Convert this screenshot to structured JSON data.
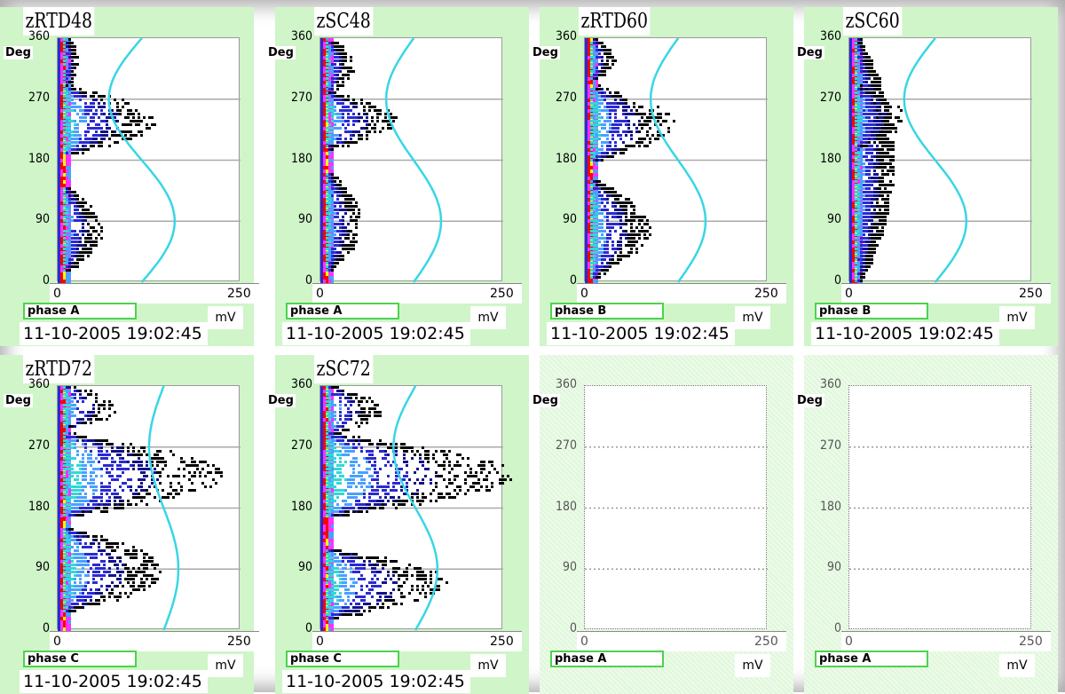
{
  "colors": {
    "panel_bg": "#cff5c9",
    "grid": "#aaaaaa",
    "sine": "#38d6e6",
    "phase_border": "#4ed24e",
    "density_scale": [
      "#000000",
      "#12128a",
      "#2a2ad2",
      "#4aa0ff",
      "#30d8d8",
      "#ff30ff",
      "#ff0000",
      "#ffff00"
    ]
  },
  "panels": [
    {
      "id": "zRTD48",
      "title": "zRTD48",
      "phase": "phase A",
      "unit": "mV",
      "timestamp": "11-10-2005  19:02:45",
      "active": true,
      "y_unit": "Deg",
      "yticks": [
        "0",
        "90",
        "180",
        "270",
        "360"
      ],
      "xticks": [
        "0",
        "250"
      ]
    },
    {
      "id": "zSC48",
      "title": "zSC48",
      "phase": "phase A",
      "unit": "mV",
      "timestamp": "11-10-2005  19:02:45",
      "active": true,
      "y_unit": "Deg",
      "yticks": [
        "0",
        "90",
        "180",
        "270",
        "360"
      ],
      "xticks": [
        "0",
        "250"
      ]
    },
    {
      "id": "zRTD60",
      "title": "zRTD60",
      "phase": "phase B",
      "unit": "mV",
      "timestamp": "11-10-2005  19:02:45",
      "active": true,
      "y_unit": "Deg",
      "yticks": [
        "0",
        "90",
        "180",
        "270",
        "360"
      ],
      "xticks": [
        "0",
        "250"
      ]
    },
    {
      "id": "zSC60",
      "title": "zSC60",
      "phase": "phase B",
      "unit": "mV",
      "timestamp": "11-10-2005  19:02:45",
      "active": true,
      "y_unit": "Deg",
      "yticks": [
        "0",
        "90",
        "180",
        "270",
        "360"
      ],
      "xticks": [
        "0",
        "250"
      ]
    },
    {
      "id": "zRTD72",
      "title": "zRTD72",
      "phase": "phase C",
      "unit": "mV",
      "timestamp": "11-10-2005  19:02:45",
      "active": true,
      "y_unit": "Deg",
      "yticks": [
        "0",
        "90",
        "180",
        "270",
        "360"
      ],
      "xticks": [
        "0",
        "250"
      ]
    },
    {
      "id": "zSC72",
      "title": "zSC72",
      "phase": "phase C",
      "unit": "mV",
      "timestamp": "11-10-2005  19:02:45",
      "active": true,
      "y_unit": "Deg",
      "yticks": [
        "0",
        "90",
        "180",
        "270",
        "360"
      ],
      "xticks": [
        "0",
        "250"
      ]
    },
    {
      "id": "empty-1",
      "title": "",
      "phase": "phase A",
      "unit": "mV",
      "timestamp": "",
      "active": false,
      "y_unit": "Deg",
      "yticks": [
        "0",
        "90",
        "180",
        "270",
        "360"
      ],
      "xticks": [
        "0",
        "250"
      ]
    },
    {
      "id": "empty-2",
      "title": "",
      "phase": "phase A",
      "unit": "mV",
      "timestamp": "",
      "active": false,
      "y_unit": "Deg",
      "yticks": [
        "0",
        "90",
        "180",
        "270",
        "360"
      ],
      "xticks": [
        "0",
        "250"
      ]
    }
  ],
  "chart_data": [
    {
      "type": "scatter",
      "title": "zRTD48",
      "xlabel": "mV",
      "ylabel": "Deg",
      "xlim": [
        0,
        250
      ],
      "ylim": [
        0,
        360
      ],
      "grid": true,
      "sine": {
        "min_x": 70,
        "max_x": 160,
        "max_at_deg": 90,
        "min_at_deg": 270
      },
      "density": {
        "base_x": [
          0,
          12
        ],
        "clusters": [
          {
            "deg": [
              190,
              290
            ],
            "xmax": 120,
            "strength": 0.8
          },
          {
            "deg": [
              20,
              140
            ],
            "xmax": 45,
            "strength": 0.55
          },
          {
            "deg": [
              290,
              360
            ],
            "xmax": 12,
            "strength": 0.3
          }
        ]
      }
    },
    {
      "type": "scatter",
      "title": "zSC48",
      "xlabel": "mV",
      "ylabel": "Deg",
      "xlim": [
        0,
        250
      ],
      "ylim": [
        0,
        360
      ],
      "grid": true,
      "sine": {
        "min_x": 90,
        "max_x": 165,
        "max_at_deg": 90,
        "min_at_deg": 270
      },
      "density": {
        "base_x": [
          0,
          10
        ],
        "clusters": [
          {
            "deg": [
              200,
              280
            ],
            "xmax": 90,
            "strength": 0.65
          },
          {
            "deg": [
              20,
              160
            ],
            "xmax": 40,
            "strength": 0.5
          },
          {
            "deg": [
              280,
              360
            ],
            "xmax": 30,
            "strength": 0.4
          }
        ]
      }
    },
    {
      "type": "scatter",
      "title": "zRTD60",
      "xlabel": "mV",
      "ylabel": "Deg",
      "xlim": [
        0,
        250
      ],
      "ylim": [
        0,
        360
      ],
      "grid": true,
      "sine": {
        "min_x": 90,
        "max_x": 165,
        "max_at_deg": 90,
        "min_at_deg": 270
      },
      "density": {
        "base_x": [
          0,
          12
        ],
        "clusters": [
          {
            "deg": [
              180,
              290
            ],
            "xmax": 105,
            "strength": 0.75
          },
          {
            "deg": [
              10,
              150
            ],
            "xmax": 75,
            "strength": 0.65
          },
          {
            "deg": [
              300,
              360
            ],
            "xmax": 25,
            "strength": 0.35
          }
        ]
      }
    },
    {
      "type": "scatter",
      "title": "zSC60",
      "xlabel": "mV",
      "ylabel": "Deg",
      "xlim": [
        0,
        250
      ],
      "ylim": [
        0,
        360
      ],
      "grid": true,
      "sine": {
        "min_x": 75,
        "max_x": 160,
        "max_at_deg": 90,
        "min_at_deg": 270
      },
      "density": {
        "base_x": [
          0,
          12
        ],
        "clusters": [
          {
            "deg": [
              0,
              360
            ],
            "xmax": 45,
            "strength": 0.85
          },
          {
            "deg": [
              200,
              290
            ],
            "xmax": 60,
            "strength": 0.5
          }
        ]
      }
    },
    {
      "type": "scatter",
      "title": "zRTD72",
      "xlabel": "mV",
      "ylabel": "Deg",
      "xlim": [
        0,
        250
      ],
      "ylim": [
        0,
        360
      ],
      "grid": true,
      "sine": {
        "min_x": 125,
        "max_x": 165,
        "max_at_deg": 90,
        "min_at_deg": 270
      },
      "density": {
        "base_x": [
          0,
          20
        ],
        "clusters": [
          {
            "deg": [
              170,
              290
            ],
            "xmax": 210,
            "strength": 0.95
          },
          {
            "deg": [
              30,
              150
            ],
            "xmax": 130,
            "strength": 0.8
          },
          {
            "deg": [
              300,
              360
            ],
            "xmax": 70,
            "strength": 0.4
          }
        ]
      }
    },
    {
      "type": "scatter",
      "title": "zSC72",
      "xlabel": "mV",
      "ylabel": "Deg",
      "xlim": [
        0,
        250
      ],
      "ylim": [
        0,
        360
      ],
      "grid": true,
      "sine": {
        "min_x": 100,
        "max_x": 160,
        "max_at_deg": 90,
        "min_at_deg": 270
      },
      "density": {
        "base_x": [
          0,
          15
        ],
        "clusters": [
          {
            "deg": [
              170,
              290
            ],
            "xmax": 245,
            "strength": 1.0
          },
          {
            "deg": [
              20,
              120
            ],
            "xmax": 160,
            "strength": 0.85
          },
          {
            "deg": [
              290,
              360
            ],
            "xmax": 70,
            "strength": 0.45
          }
        ]
      }
    },
    {
      "type": "scatter",
      "title": "",
      "xlabel": "mV",
      "ylabel": "Deg",
      "xlim": [
        0,
        250
      ],
      "ylim": [
        0,
        360
      ],
      "grid": true,
      "empty": true
    },
    {
      "type": "scatter",
      "title": "",
      "xlabel": "mV",
      "ylabel": "Deg",
      "xlim": [
        0,
        250
      ],
      "ylim": [
        0,
        360
      ],
      "grid": true,
      "empty": true
    }
  ]
}
